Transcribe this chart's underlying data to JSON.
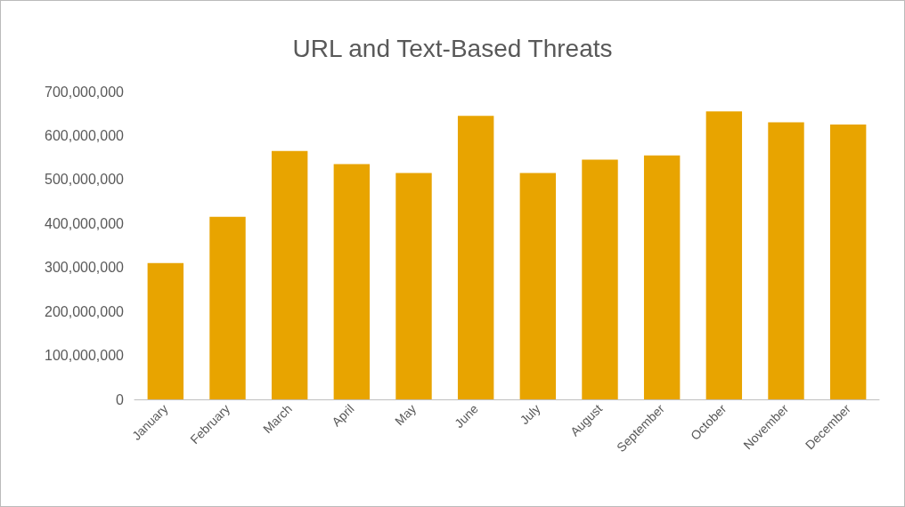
{
  "chart_data": {
    "type": "bar",
    "title": "URL and Text-Based Threats",
    "categories": [
      "January",
      "February",
      "March",
      "April",
      "May",
      "June",
      "July",
      "August",
      "September",
      "October",
      "November",
      "December"
    ],
    "values": [
      310000000,
      415000000,
      565000000,
      535000000,
      515000000,
      645000000,
      515000000,
      545000000,
      555000000,
      655000000,
      630000000,
      625000000
    ],
    "color": "#e8a400",
    "ylim": [
      0,
      700000000
    ],
    "yticks": [
      0,
      {
        "value": 100000000,
        "label": "100,000,000"
      },
      {
        "value": 200000000,
        "label": "200,000,000"
      },
      {
        "value": 300000000,
        "label": "300,000,000"
      },
      {
        "value": 400000000,
        "label": "400,000,000"
      },
      {
        "value": 500000000,
        "label": "500,000,000"
      },
      {
        "value": 600000000,
        "label": "600,000,000"
      },
      {
        "value": 700000000,
        "label": "700,000,000"
      }
    ],
    "grid": false
  }
}
